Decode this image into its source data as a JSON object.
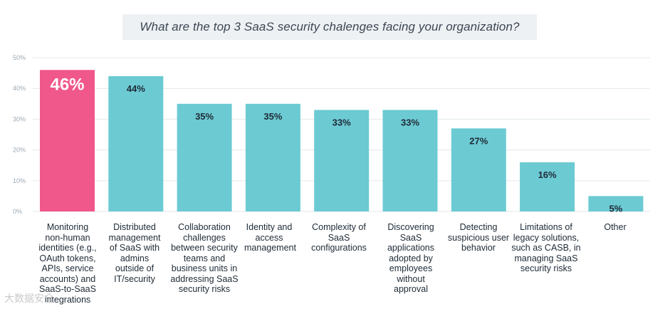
{
  "title": "What are the top 3 SaaS security chalenges facing your organization?",
  "watermark": "大数据安全",
  "chart_data": {
    "type": "bar",
    "title": "What are the top 3 SaaS security chalenges facing your organization?",
    "ylim": [
      0,
      50
    ],
    "yticks": [
      0,
      10,
      20,
      30,
      40,
      50
    ],
    "ytick_labels": [
      "0%",
      "10%",
      "20%",
      "30%",
      "40%",
      "50%"
    ],
    "grid": true,
    "categories": [
      "Monitoring non-human identities (e.g., OAuth tokens, APIs, service accounts) and SaaS-to-SaaS integrations",
      "Distributed management of SaaS with admins outside of IT/security",
      "Collaboration challenges between security teams and business units in addressing SaaS security risks",
      "Identity and access management",
      "Complexity of SaaS configurations",
      "Discovering SaaS applications adopted by employees without approval",
      "Detecting suspicious user behavior",
      "Limitations of legacy solutions, such as CASB, in managing SaaS security risks",
      "Other"
    ],
    "values": [
      46,
      44,
      35,
      35,
      33,
      33,
      27,
      16,
      5
    ],
    "value_labels": [
      "46%",
      "44%",
      "35%",
      "35%",
      "33%",
      "33%",
      "27%",
      "16%",
      "5%"
    ],
    "highlight_index": 0,
    "colors": {
      "highlight": "#f0578a",
      "bar": "#6ccad3",
      "grid": "#e3e7ea",
      "tick": "#9aa8b4",
      "label": "#1e2a36"
    }
  }
}
